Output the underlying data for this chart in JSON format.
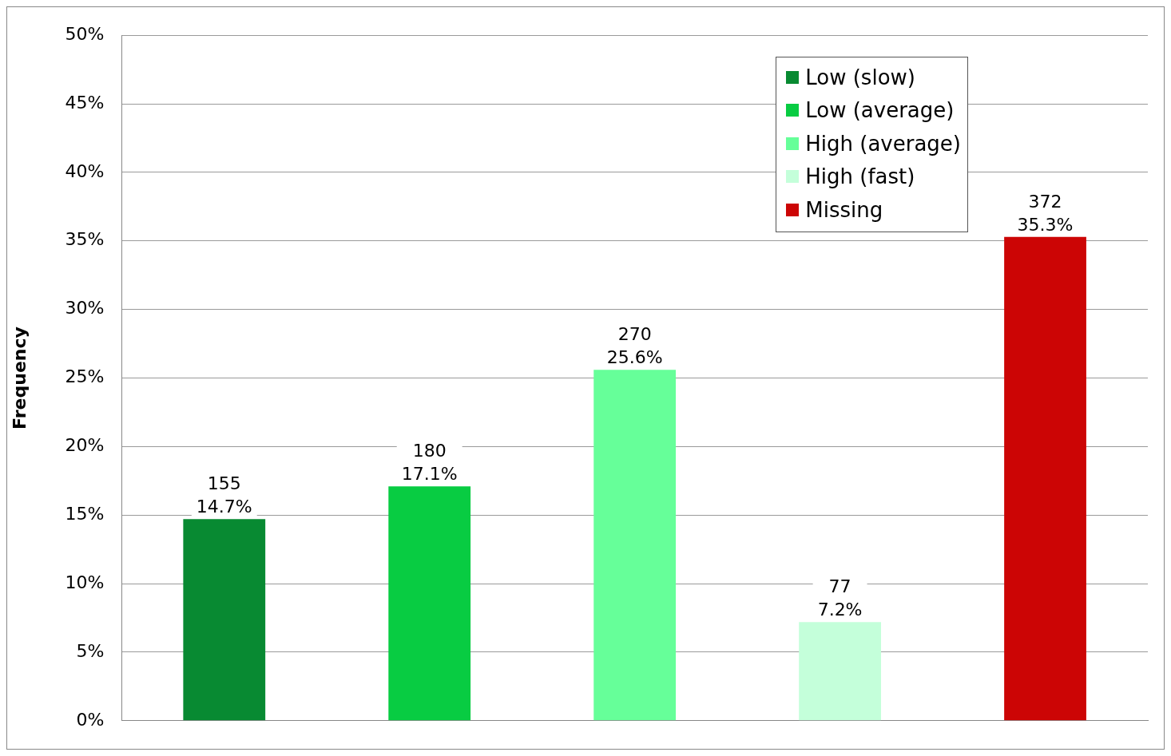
{
  "chart_data": {
    "type": "bar",
    "ylabel": "Frequency",
    "categories": [
      null,
      null,
      null,
      null,
      null
    ],
    "series": [
      {
        "name": "Low (slow)",
        "color": "#088a32",
        "values": [
          14.7,
          null,
          null,
          null,
          null
        ],
        "value_labels": [
          "155\n14.7%",
          null,
          null,
          null,
          null
        ]
      },
      {
        "name": "Low (average)",
        "color": "#08cc42",
        "values": [
          null,
          17.1,
          null,
          null,
          null
        ],
        "value_labels": [
          null,
          "180\n17.1%",
          null,
          null,
          null
        ]
      },
      {
        "name": "High (average)",
        "color": "#66ff99",
        "values": [
          null,
          null,
          25.6,
          null,
          null
        ],
        "value_labels": [
          null,
          null,
          "270\n25.6%",
          null,
          null
        ]
      },
      {
        "name": "High (fast)",
        "color": "#c4ffda",
        "values": [
          null,
          null,
          null,
          7.2,
          null
        ],
        "value_labels": [
          null,
          null,
          null,
          "77\n7.2%",
          null
        ]
      },
      {
        "name": "Missing",
        "color": "#cc0505",
        "values": [
          null,
          null,
          null,
          null,
          35.3
        ],
        "value_labels": [
          null,
          null,
          null,
          null,
          "372\n35.3%"
        ]
      }
    ],
    "ylim": [
      0,
      50
    ],
    "yticks": [
      {
        "value": 0,
        "label": "0%"
      },
      {
        "value": 5,
        "label": "5%"
      },
      {
        "value": 10,
        "label": "10%"
      },
      {
        "value": 15,
        "label": "15%"
      },
      {
        "value": 20,
        "label": "20%"
      },
      {
        "value": 25,
        "label": "25%"
      },
      {
        "value": 30,
        "label": "30%"
      },
      {
        "value": 35,
        "label": "35%"
      },
      {
        "value": 40,
        "label": "40%"
      },
      {
        "value": 45,
        "label": "45%"
      },
      {
        "value": 50,
        "label": "50%"
      }
    ],
    "grid": "y",
    "legend": "top right"
  }
}
